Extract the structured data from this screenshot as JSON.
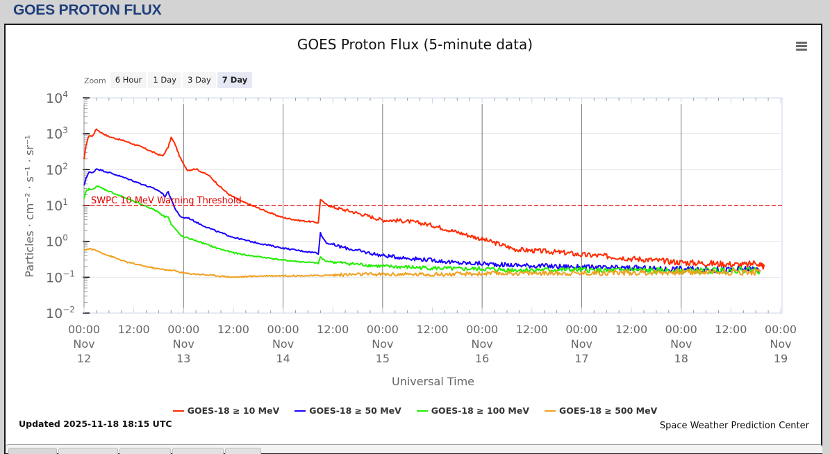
{
  "page": {
    "heading": "GOES PROTON FLUX"
  },
  "chart_header": {
    "title": "GOES Proton Flux (5-minute data)",
    "menu_icon": "hamburger-menu-icon"
  },
  "zoom": {
    "label": "Zoom",
    "buttons": [
      {
        "label": "6 Hour",
        "active": false
      },
      {
        "label": "1 Day",
        "active": false
      },
      {
        "label": "3 Day",
        "active": false
      },
      {
        "label": "7 Day",
        "active": true
      }
    ]
  },
  "footer": {
    "updated": "Updated 2025-11-18 18:15 UTC",
    "credit": "Space Weather Prediction Center"
  },
  "chart_data": {
    "type": "line",
    "title": "GOES Proton Flux (5-minute data)",
    "xlabel": "Universal Time",
    "ylabel": "Particles · cm⁻² · s⁻¹ · sr⁻¹",
    "yscale": "log",
    "ylim": [
      0.01,
      10000
    ],
    "xlim_hours": [
      0,
      168
    ],
    "x_unit": "hours since 2025-11-12 00:00 UTC",
    "grid": true,
    "legend_position": "bottom-center",
    "y_ticks": [
      {
        "base": "10",
        "exp": "4",
        "value": 10000
      },
      {
        "base": "10",
        "exp": "3",
        "value": 1000
      },
      {
        "base": "10",
        "exp": "2",
        "value": 100
      },
      {
        "base": "10",
        "exp": "1",
        "value": 10
      },
      {
        "base": "10",
        "exp": "0",
        "value": 1
      },
      {
        "base": "10",
        "exp": "−1",
        "value": 0.1
      },
      {
        "base": "10",
        "exp": "−2",
        "value": 0.01
      }
    ],
    "x_ticks": [
      {
        "hour": 0,
        "time": "00:00",
        "month": "Nov",
        "day": "12"
      },
      {
        "hour": 12,
        "time": "12:00",
        "month": "",
        "day": ""
      },
      {
        "hour": 24,
        "time": "00:00",
        "month": "Nov",
        "day": "13"
      },
      {
        "hour": 36,
        "time": "12:00",
        "month": "",
        "day": ""
      },
      {
        "hour": 48,
        "time": "00:00",
        "month": "Nov",
        "day": "14"
      },
      {
        "hour": 60,
        "time": "12:00",
        "month": "",
        "day": ""
      },
      {
        "hour": 72,
        "time": "00:00",
        "month": "Nov",
        "day": "15"
      },
      {
        "hour": 84,
        "time": "12:00",
        "month": "",
        "day": ""
      },
      {
        "hour": 96,
        "time": "00:00",
        "month": "Nov",
        "day": "16"
      },
      {
        "hour": 108,
        "time": "12:00",
        "month": "",
        "day": ""
      },
      {
        "hour": 120,
        "time": "00:00",
        "month": "Nov",
        "day": "17"
      },
      {
        "hour": 132,
        "time": "12:00",
        "month": "",
        "day": ""
      },
      {
        "hour": 144,
        "time": "00:00",
        "month": "Nov",
        "day": "18"
      },
      {
        "hour": 156,
        "time": "12:00",
        "month": "",
        "day": ""
      },
      {
        "hour": 168,
        "time": "00:00",
        "month": "Nov",
        "day": "19"
      }
    ],
    "threshold": {
      "label": "SWPC 10 MeV Warning Threshold",
      "value": 10,
      "color": "#e00000"
    },
    "series": [
      {
        "name": "GOES-18 ≥ 10 MeV",
        "color": "#ff2a00",
        "x": [
          0,
          0.5,
          1.2,
          2.0,
          3.0,
          4.0,
          6.0,
          10,
          14,
          16,
          18,
          19.0,
          19.5,
          20.3,
          21.0,
          22.0,
          23.0,
          24.0,
          25.0,
          27,
          28,
          30,
          33,
          35,
          38,
          42,
          46,
          48,
          52,
          56,
          56.5,
          57.0,
          57.5,
          58.5,
          60,
          64,
          68,
          72,
          76,
          80,
          84,
          90,
          96,
          100,
          104,
          108,
          112,
          116,
          120,
          124,
          128,
          132,
          136,
          140,
          144,
          148,
          152,
          156,
          160,
          162,
          163,
          164,
          162.3
        ],
        "y": [
          190,
          500,
          900,
          850,
          1350,
          1100,
          830,
          620,
          420,
          330,
          260,
          240,
          300,
          420,
          790,
          500,
          240,
          140,
          96,
          105,
          90,
          70,
          32,
          20,
          13,
          8.5,
          5.5,
          4.6,
          3.8,
          3.4,
          3.2,
          15,
          13,
          10.5,
          9.0,
          7.0,
          5.3,
          3.9,
          3.8,
          3.4,
          2.8,
          1.8,
          1.15,
          0.85,
          0.6,
          0.55,
          0.52,
          0.48,
          0.42,
          0.4,
          0.37,
          0.33,
          0.31,
          0.28,
          0.26,
          0.25,
          0.24,
          0.23,
          0.22,
          0.26,
          0.24,
          0.2,
          0.22
        ]
      },
      {
        "name": "GOES-18 ≥ 50 MeV",
        "color": "#1a00ff",
        "x": [
          0,
          0.5,
          1.2,
          2.0,
          3.0,
          5,
          8,
          12,
          16,
          18,
          19,
          19.5,
          20.3,
          21,
          22,
          23,
          24,
          25,
          28,
          32,
          36,
          40,
          44,
          48,
          52,
          56,
          56.5,
          57.0,
          57.5,
          58.5,
          62,
          66,
          72,
          78,
          84,
          90,
          96,
          102,
          108,
          114,
          120,
          126,
          132,
          138,
          144,
          150,
          156,
          162,
          163
        ],
        "y": [
          35,
          60,
          85,
          80,
          106,
          90,
          70,
          48,
          32,
          26,
          21,
          18,
          24,
          15,
          8,
          5.2,
          4.5,
          4.6,
          3.0,
          1.9,
          1.3,
          1.0,
          0.8,
          0.65,
          0.55,
          0.48,
          0.46,
          1.7,
          1.3,
          0.9,
          0.7,
          0.55,
          0.4,
          0.34,
          0.3,
          0.25,
          0.24,
          0.22,
          0.21,
          0.2,
          0.19,
          0.18,
          0.18,
          0.17,
          0.17,
          0.16,
          0.16,
          0.17,
          0.16
        ]
      },
      {
        "name": "GOES-18 ≥ 100 MeV",
        "color": "#22ee00",
        "x": [
          0,
          0.5,
          1.2,
          2.0,
          3.0,
          5,
          8,
          12,
          16,
          18,
          19,
          19.5,
          20.3,
          21,
          22,
          23,
          24,
          25,
          28,
          32,
          36,
          40,
          44,
          48,
          52,
          56,
          56.5,
          57.0,
          57.5,
          58.5,
          62,
          66,
          72,
          78,
          84,
          90,
          96,
          102,
          108,
          114,
          120,
          126,
          132,
          138,
          144,
          150,
          156,
          162,
          163
        ],
        "y": [
          15,
          25,
          29,
          27,
          35,
          28,
          20,
          13,
          8.5,
          6.5,
          5.3,
          4.8,
          5.0,
          3.0,
          2.2,
          1.6,
          1.3,
          1.25,
          0.95,
          0.65,
          0.48,
          0.4,
          0.35,
          0.3,
          0.27,
          0.25,
          0.24,
          0.37,
          0.32,
          0.28,
          0.25,
          0.23,
          0.2,
          0.19,
          0.18,
          0.17,
          0.17,
          0.16,
          0.16,
          0.16,
          0.16,
          0.15,
          0.16,
          0.15,
          0.15,
          0.15,
          0.16,
          0.16,
          0.15
        ]
      },
      {
        "name": "GOES-18 ≥ 500 MeV",
        "color": "#f0a020",
        "x": [
          0,
          1.5,
          3,
          6,
          10,
          14,
          18,
          22,
          24,
          28,
          32,
          36,
          40,
          44,
          48,
          52,
          56,
          60,
          66,
          72,
          80,
          88,
          96,
          104,
          112,
          120,
          128,
          136,
          144,
          152,
          160,
          163
        ],
        "y": [
          0.58,
          0.62,
          0.55,
          0.4,
          0.27,
          0.21,
          0.17,
          0.15,
          0.13,
          0.12,
          0.11,
          0.1,
          0.105,
          0.11,
          0.11,
          0.11,
          0.11,
          0.115,
          0.12,
          0.12,
          0.12,
          0.12,
          0.125,
          0.13,
          0.13,
          0.13,
          0.135,
          0.135,
          0.14,
          0.14,
          0.14,
          0.14
        ]
      }
    ]
  }
}
